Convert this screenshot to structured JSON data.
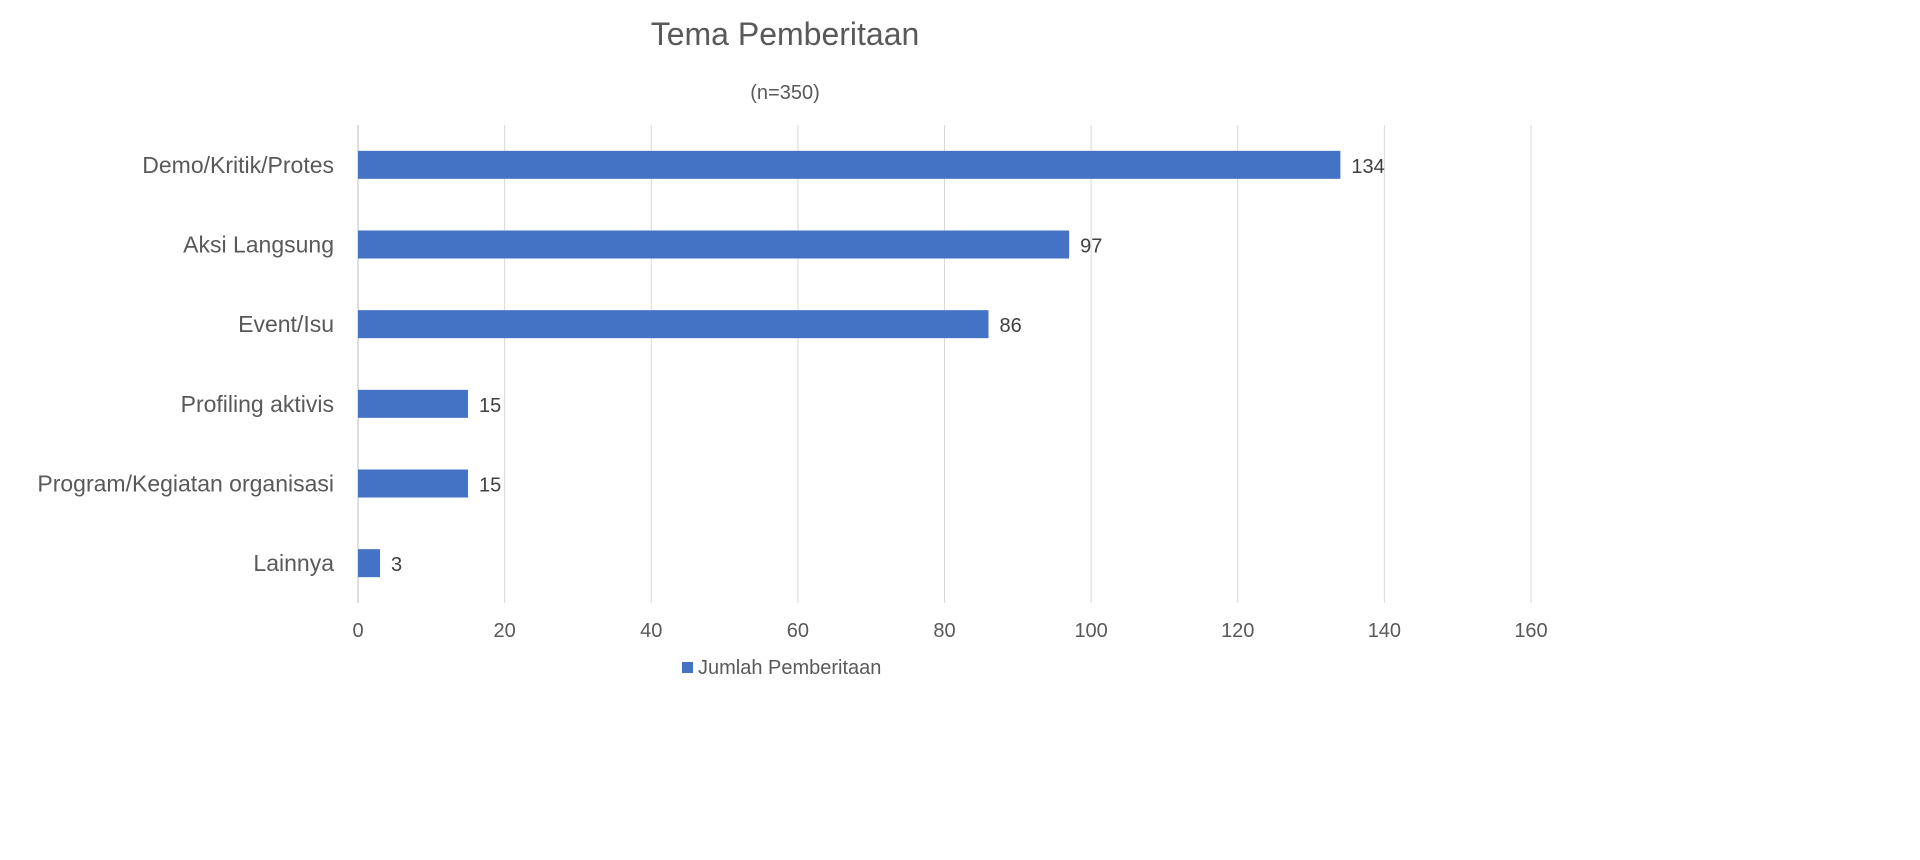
{
  "chart_data": {
    "type": "bar",
    "orientation": "horizontal",
    "title": "Tema Pemberitaan",
    "subtitle": "(n=350)",
    "categories": [
      "Demo/Kritik/Protes",
      "Aksi Langsung",
      "Event/Isu",
      "Profiling aktivis",
      "Program/Kegiatan organisasi",
      "Lainnya"
    ],
    "series": [
      {
        "name": "Jumlah Pemberitaan",
        "values": [
          134,
          97,
          86,
          15,
          15,
          3
        ],
        "color": "#4472C4"
      }
    ],
    "xlim": [
      0,
      160
    ],
    "xticks": [
      "0",
      "20",
      "40",
      "60",
      "80",
      "100",
      "120",
      "140",
      "160"
    ],
    "xlabel": "",
    "ylabel": "",
    "grid": true,
    "legend": "bottom"
  }
}
